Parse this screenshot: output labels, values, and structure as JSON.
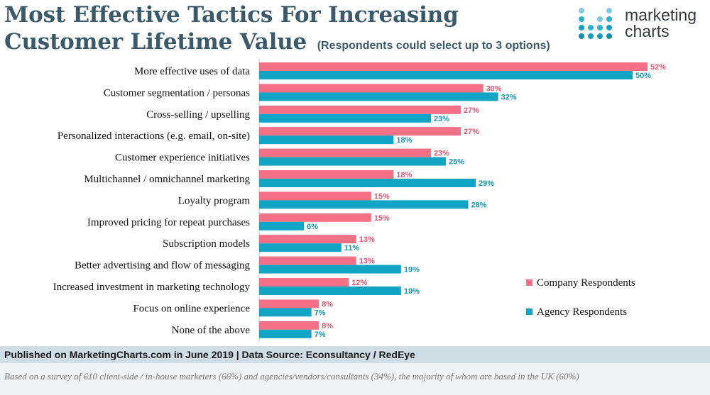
{
  "header": {
    "title_line1": "Most Effective Tactics For Increasing",
    "title_line2": "Customer Lifetime Value",
    "subtitle": "(Respondents could select up to 3 options)"
  },
  "logo": {
    "line1": "marketing",
    "line2": "charts"
  },
  "footer": {
    "source": "Published on MarketingCharts.com in June 2019 | Data Source: Econsultancy / RedEye",
    "note": "Based on a survey of 610 client-side / in-house marketers (66%) and agencies/vendors/consultants (34%), the majority of whom are based in the UK (60%)"
  },
  "chart_data": {
    "type": "bar",
    "orientation": "horizontal",
    "categories": [
      "More effective uses of data",
      "Customer segmentation / personas",
      "Cross-selling / upselling",
      "Personalized interactions (e.g. email, on-site)",
      "Customer experience initiatives",
      "Multichannel / omnichannel marketing",
      "Loyalty program",
      "Improved pricing for repeat purchases",
      "Subscription models",
      "Better advertising and flow of messaging",
      "Increased investment in marketing technology",
      "Focus on online experience",
      "None of the above"
    ],
    "series": [
      {
        "name": "Company Respondents",
        "color": "#f47087",
        "label_color": "#e8546f",
        "values": [
          52,
          30,
          27,
          27,
          23,
          18,
          15,
          15,
          13,
          13,
          12,
          8,
          8
        ]
      },
      {
        "name": "Agency Respondents",
        "color": "#10a5c4",
        "label_color": "#1497b8",
        "values": [
          50,
          32,
          23,
          18,
          25,
          29,
          28,
          6,
          11,
          19,
          19,
          7,
          7
        ]
      }
    ],
    "value_suffix": "%",
    "xlim": [
      0,
      52
    ],
    "legend_position": "right",
    "grid": false
  }
}
